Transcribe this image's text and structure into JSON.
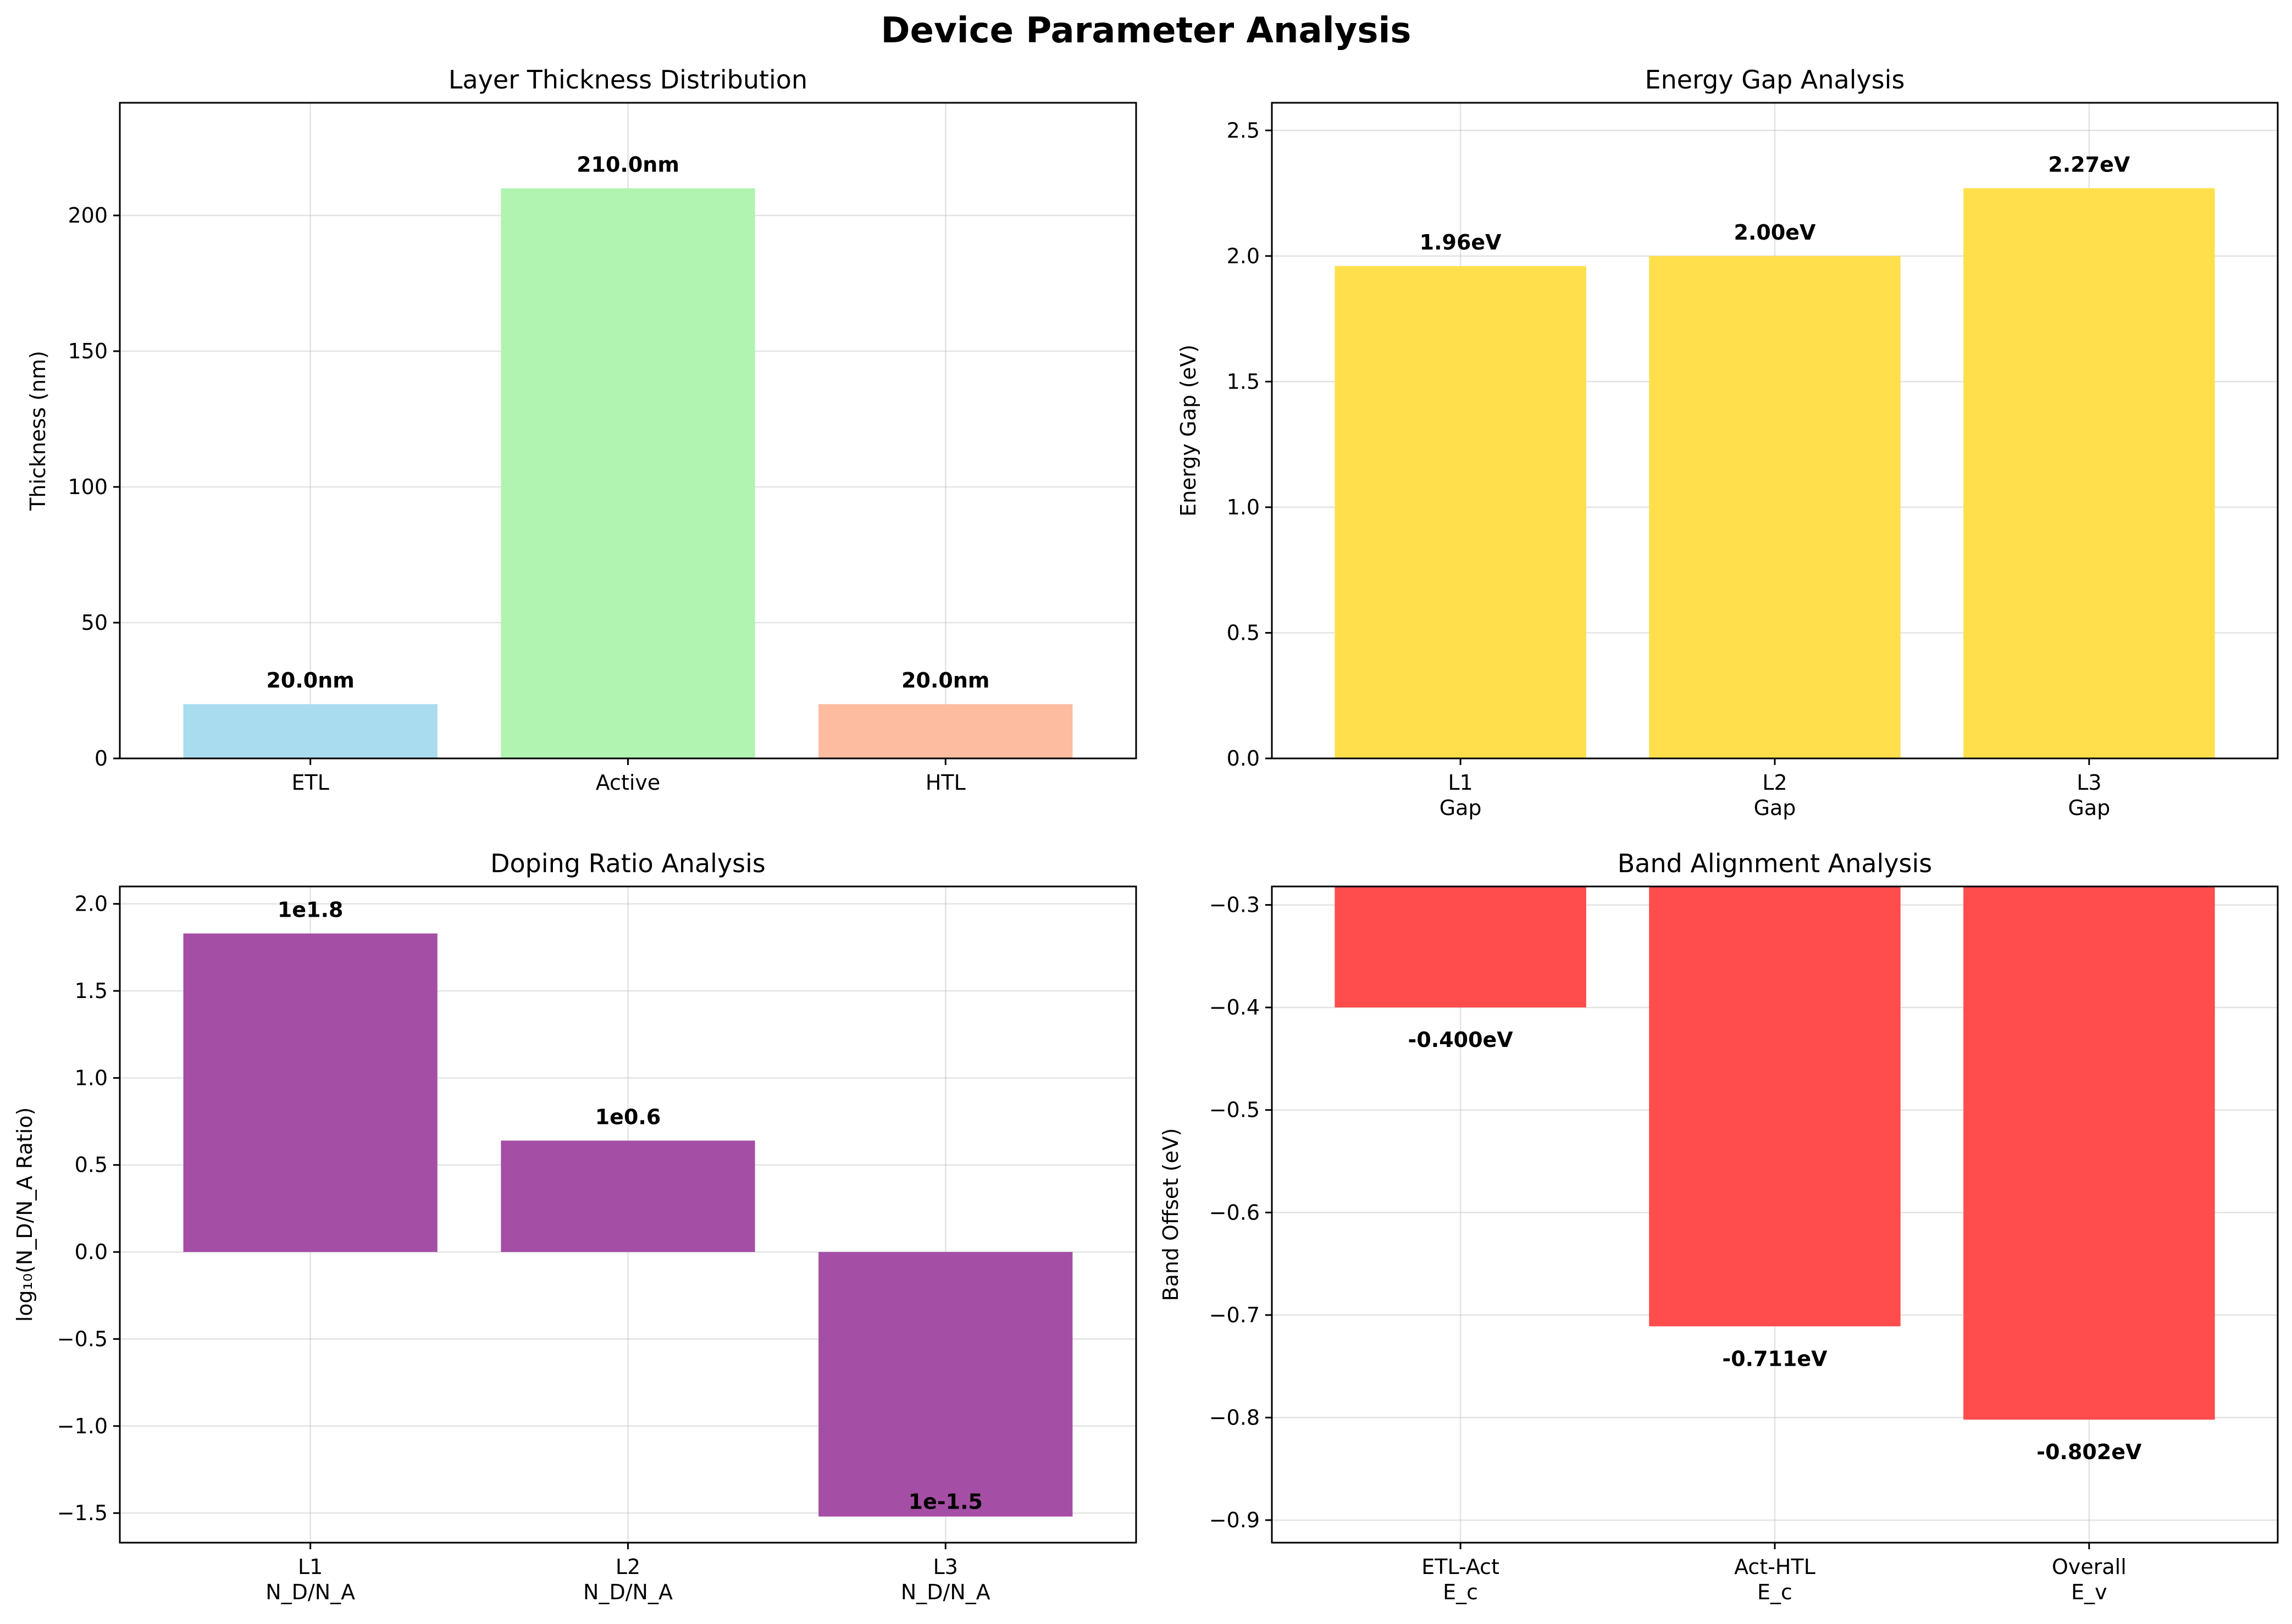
{
  "figure": {
    "title": "Device Parameter Analysis"
  },
  "chart_data": [
    {
      "id": "thickness",
      "type": "bar",
      "title": "Layer Thickness Distribution",
      "ylabel": "Thickness (nm)",
      "categories": [
        [
          "ETL"
        ],
        [
          "Active"
        ],
        [
          "HTL"
        ]
      ],
      "values": [
        20.0,
        210.0,
        20.0
      ],
      "labels": [
        "20.0nm",
        "210.0nm",
        "20.0nm"
      ],
      "colors": [
        "#a9dcef",
        "#b1f3b0",
        "#fdbba0"
      ],
      "ylim": [
        0,
        241.5
      ],
      "yticks": [
        0,
        50,
        100,
        150,
        200
      ],
      "ytick_labels": [
        "0",
        "50",
        "100",
        "150",
        "200"
      ],
      "grid": true
    },
    {
      "id": "gap",
      "type": "bar",
      "title": "Energy Gap Analysis",
      "ylabel": "Energy Gap (eV)",
      "categories": [
        [
          "L1",
          "Gap"
        ],
        [
          "L2",
          "Gap"
        ],
        [
          "L3",
          "Gap"
        ]
      ],
      "values": [
        1.96,
        2.0,
        2.27
      ],
      "labels": [
        "1.96eV",
        "2.00eV",
        "2.27eV"
      ],
      "colors": [
        "#ffe04c",
        "#ffe04c",
        "#ffe04c"
      ],
      "ylim": [
        0,
        2.61
      ],
      "yticks": [
        0,
        0.5,
        1.0,
        1.5,
        2.0,
        2.5
      ],
      "ytick_labels": [
        "0.0",
        "0.5",
        "1.0",
        "1.5",
        "2.0",
        "2.5"
      ],
      "grid": true
    },
    {
      "id": "doping",
      "type": "bar",
      "title": "Doping Ratio Analysis",
      "ylabel": "log₁₀(N_D/N_A Ratio)",
      "categories": [
        [
          "L1",
          "N_D/N_A"
        ],
        [
          "L2",
          "N_D/N_A"
        ],
        [
          "L3",
          "N_D/N_A"
        ]
      ],
      "values": [
        1.83,
        0.64,
        -1.52
      ],
      "labels": [
        "1e1.8",
        "1e0.6",
        "1e-1.5"
      ],
      "colors": [
        "#a54ea5",
        "#a54ea5",
        "#a54ea5"
      ],
      "ylim": [
        -1.67,
        2.1
      ],
      "yticks": [
        -1.5,
        -1.0,
        -0.5,
        0.0,
        0.5,
        1.0,
        1.5,
        2.0
      ],
      "ytick_labels": [
        "−1.5",
        "−1.0",
        "−0.5",
        "0.0",
        "0.5",
        "1.0",
        "1.5",
        "2.0"
      ],
      "grid": true
    },
    {
      "id": "band",
      "type": "bar",
      "title": "Band Alignment Analysis",
      "ylabel": "Band Offset (eV)",
      "categories": [
        [
          "ETL-Act",
          "E_c"
        ],
        [
          "Act-HTL",
          "E_c"
        ],
        [
          "Overall",
          "E_v"
        ]
      ],
      "values": [
        -0.4,
        -0.711,
        -0.802
      ],
      "labels": [
        "-0.400eV",
        "-0.711eV",
        "-0.802eV"
      ],
      "colors": [
        "#ff4c4c",
        "#ff4c4c",
        "#ff4c4c"
      ],
      "ylim": [
        -0.922,
        -0.282
      ],
      "bar_base": -0.282,
      "yticks": [
        -0.9,
        -0.8,
        -0.7,
        -0.6,
        -0.5,
        -0.4,
        -0.3
      ],
      "ytick_labels": [
        "−0.9",
        "−0.8",
        "−0.7",
        "−0.6",
        "−0.5",
        "−0.4",
        "−0.3"
      ],
      "grid": true
    }
  ]
}
